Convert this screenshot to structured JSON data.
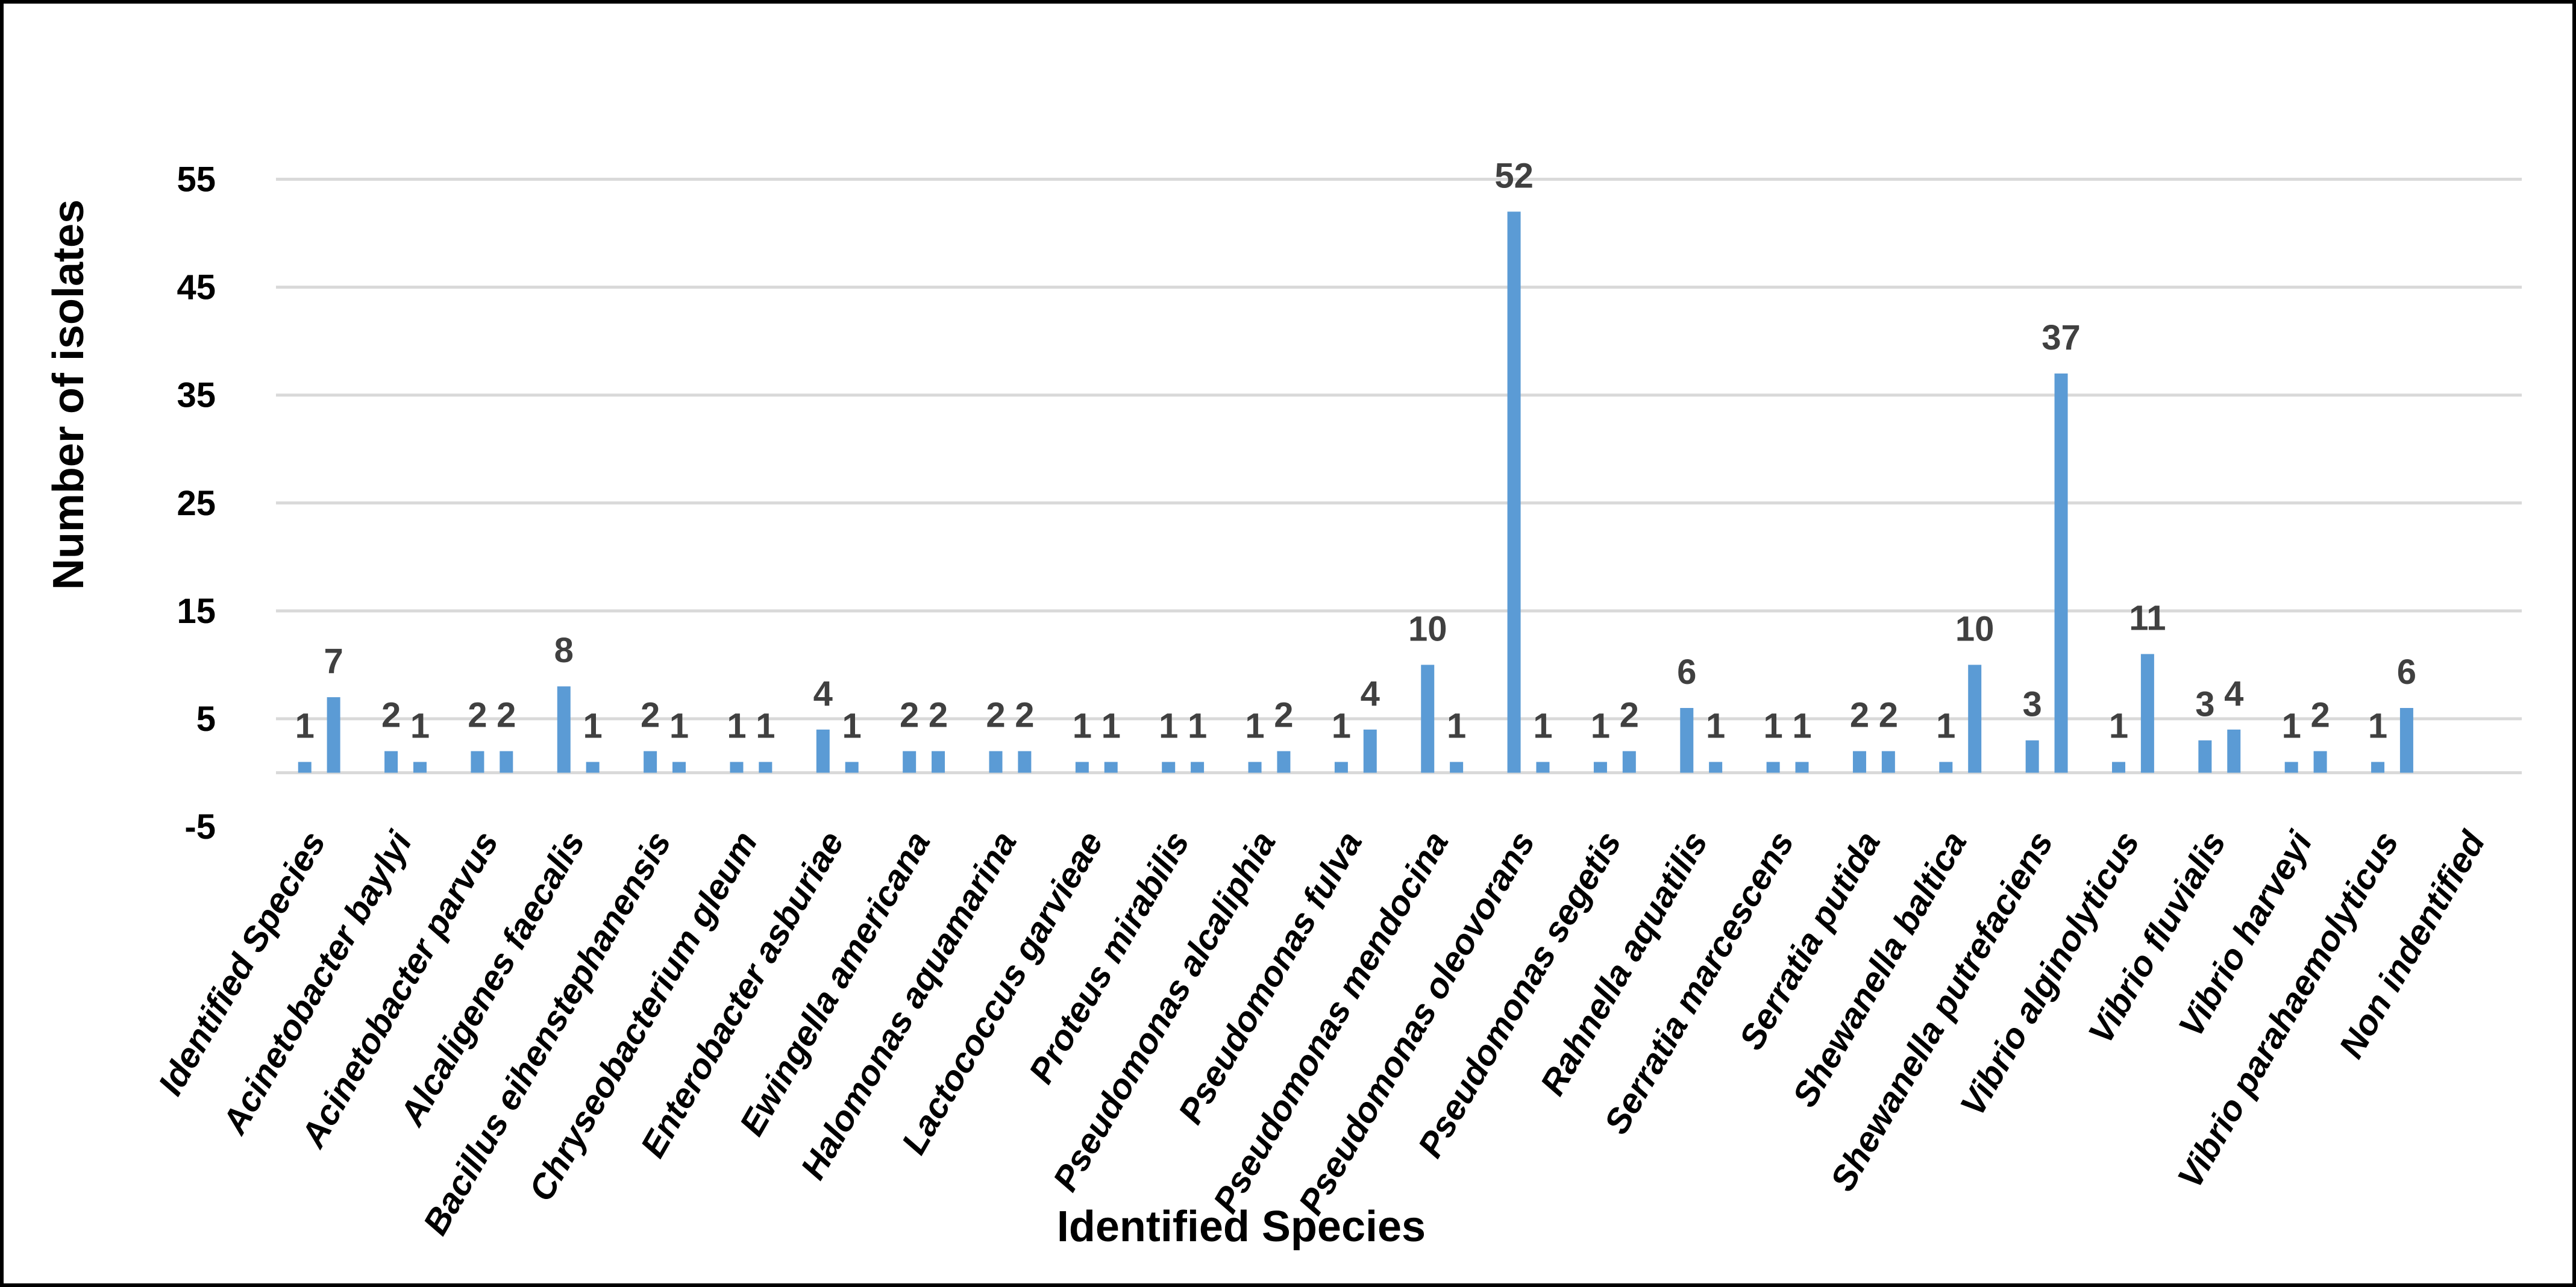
{
  "chart_data": {
    "type": "bar",
    "title": "",
    "xlabel": "Identified Species",
    "ylabel": "Number of isolates",
    "ylim": [
      -5,
      60
    ],
    "yticks": [
      -5,
      5,
      15,
      25,
      35,
      45,
      55
    ],
    "grid": true,
    "legend": "none",
    "categories": [
      "Identified Species",
      "Acinetobacter baylyi",
      "Acinetobacter parvus",
      "Alcaligenes faecalis",
      "Bacillus eihenstephanensis",
      "Chryseobacterium gleum",
      "Enterobacter asburiae",
      "Ewingella americana",
      "Halomonas aquamarina",
      "Lactococcus garvieae",
      "Proteus mirabilis",
      "Pseudomonas alcaliphia",
      "Pseudomonas fulva",
      "Pseudomonas mendocina",
      "Pseudomonas oleovorans",
      "Pseudomonas segetis",
      "Rahnella aquatilis",
      "Serratia marcescens",
      "Serratia putida",
      "Shewanella baltica",
      "Shewanella putrefaciens",
      "Vibrio alginolyticus",
      "Vibrio fluvialis",
      "Vibrio harveyi",
      "Vibrio parahaemolyticus",
      "Non indentified"
    ],
    "values": [
      [
        1,
        7
      ],
      [
        2,
        1
      ],
      [
        2,
        2
      ],
      [
        8,
        1
      ],
      [
        2,
        1
      ],
      [
        1,
        1
      ],
      [
        4,
        1
      ],
      [
        2,
        2
      ],
      [
        2,
        2
      ],
      [
        1,
        1
      ],
      [
        1,
        1
      ],
      [
        1,
        2
      ],
      [
        1,
        4
      ],
      [
        10,
        1
      ],
      [
        52,
        1
      ],
      [
        1,
        2
      ],
      [
        6,
        1
      ],
      [
        1,
        1
      ],
      [
        2,
        2
      ],
      [
        1,
        10
      ],
      [
        3,
        37
      ],
      [
        1,
        11
      ],
      [
        3,
        4
      ],
      [
        1,
        2
      ],
      [
        1,
        6
      ]
    ],
    "bar_color": "#5b9bd5"
  }
}
